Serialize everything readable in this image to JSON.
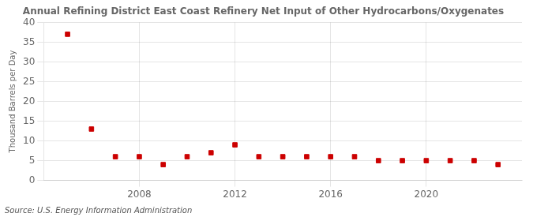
{
  "chart_data": {
    "type": "scatter",
    "title": "Annual Refining District East Coast Refinery Net Input of Other Hydrocarbons/Oxygenates",
    "ylabel": "Thousand Barrels per Day",
    "source": "Source: U.S. Energy Information Administration",
    "x": [
      2005,
      2006,
      2007,
      2008,
      2009,
      2010,
      2011,
      2012,
      2013,
      2014,
      2015,
      2016,
      2017,
      2018,
      2019,
      2020,
      2021,
      2022,
      2023
    ],
    "values": [
      37.0,
      13.0,
      6.0,
      6.0,
      4.0,
      6.0,
      7.0,
      9.0,
      6.0,
      6.0,
      6.0,
      6.0,
      6.0,
      5.0,
      5.0,
      5.0,
      5.0,
      5.0,
      4.0
    ],
    "color": "#cc0000",
    "marker": "square",
    "xlim": [
      2004.0,
      2024.0
    ],
    "xticks": [
      2008,
      2012,
      2016,
      2020
    ],
    "ylim": [
      0,
      40
    ],
    "yticks": [
      0,
      5,
      10,
      15,
      20,
      25,
      30,
      35,
      40
    ],
    "grid": true
  }
}
